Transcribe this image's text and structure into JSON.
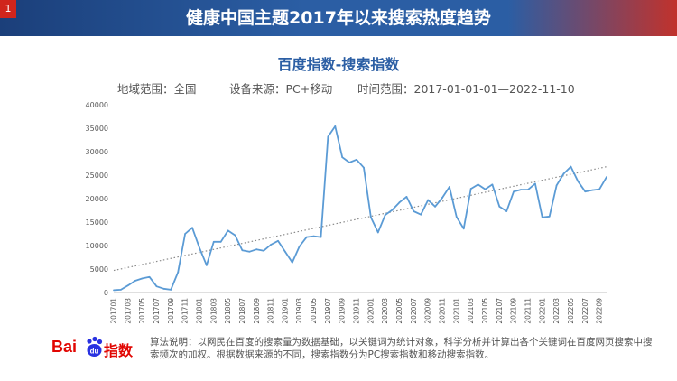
{
  "page_number": "1",
  "header": {
    "title": "健康中国主题2017年以来搜索热度趋势"
  },
  "chart_title": "百度指数-搜索指数",
  "meta": {
    "region": "地域范围：全国",
    "device": "设备来源：PC+移动",
    "time": "时间范围：2017-01-01-01—2022-11-10"
  },
  "logo": {
    "bai": "Bai",
    "zhishu": "指数"
  },
  "footnote": "算法说明：以网民在百度的搜索量为数据基础，以关键词为统计对象，科学分析并计算出各个关键词在百度网页搜索中搜索频次的加权。根据数据来源的不同，搜索指数分为PC搜索指数和移动搜索指数。",
  "colors": {
    "line": "#5b9bd5",
    "trend": "#8a8a8a",
    "header": "#2b5ea4",
    "accent": "#d0251c"
  },
  "chart_data": {
    "type": "line",
    "ylim": [
      0,
      40000
    ],
    "yticks": [
      "0",
      "5000",
      "10000",
      "15000",
      "20000",
      "25000",
      "30000",
      "35000",
      "40000"
    ],
    "x_tick_labels": [
      "201701",
      "201703",
      "201705",
      "201707",
      "201709",
      "201711",
      "201801",
      "201803",
      "201805",
      "201807",
      "201809",
      "201811",
      "201901",
      "201903",
      "201905",
      "201907",
      "201909",
      "201911",
      "202001",
      "202003",
      "202005",
      "202007",
      "202009",
      "202011",
      "202101",
      "202103",
      "202105",
      "202107",
      "202109",
      "202111",
      "202201",
      "202203",
      "202205",
      "202207",
      "202209"
    ],
    "trendline": {
      "style": "dotted",
      "start": 4700,
      "end": 26800
    },
    "series": [
      {
        "values": [
          500,
          600,
          1500,
          2500,
          3000,
          3300,
          1300,
          800,
          600,
          4300,
          12500,
          13800,
          9500,
          5800,
          10800,
          10800,
          13200,
          12200,
          9000,
          8700,
          9200,
          8900,
          10200,
          11000,
          8700,
          6400,
          9800,
          11800,
          12000,
          11800,
          33200,
          35400,
          28800,
          27700,
          28300,
          26600,
          16000,
          12800,
          16500,
          17600,
          19200,
          20400,
          17300,
          16600,
          19700,
          18300,
          20200,
          22500,
          16100,
          13600,
          22100,
          23000,
          22000,
          23000,
          18300,
          17300,
          21500,
          21900,
          21900,
          23200,
          16000,
          16200,
          22800,
          25300,
          26800,
          23700,
          21500,
          21800,
          22000,
          24600
        ]
      }
    ]
  }
}
